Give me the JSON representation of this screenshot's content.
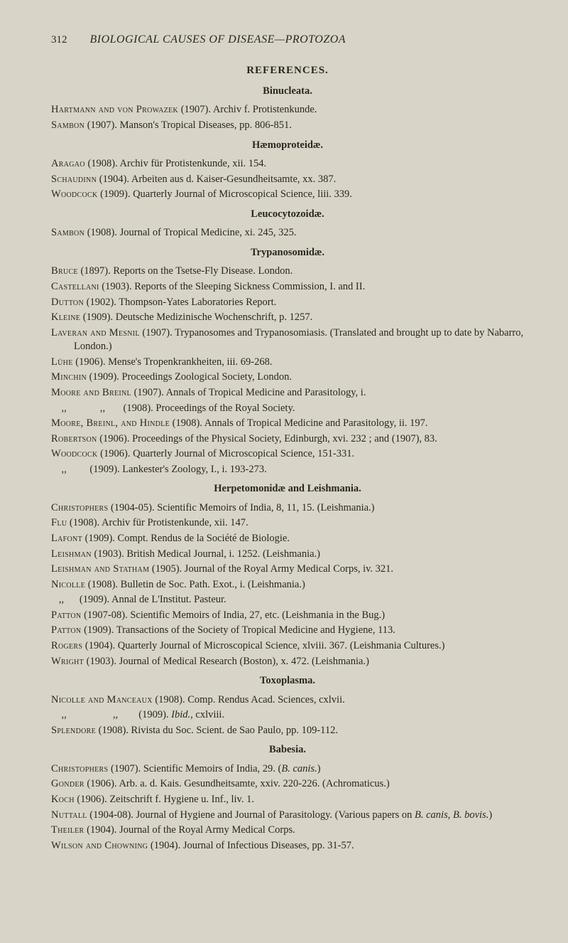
{
  "page": {
    "number": "312",
    "runningTitle": "BIOLOGICAL CAUSES OF DISEASE—PROTOZOA"
  },
  "mainHeading": "REFERENCES.",
  "sections": {
    "binucleata": {
      "heading": "Binucleata.",
      "entries": [
        {
          "sc": "Hartmann and von Prowazek",
          "text": " (1907). Archiv f. Protistenkunde."
        },
        {
          "sc": "Sambon",
          "text": " (1907). Manson's Tropical Diseases, pp. 806-851."
        }
      ]
    },
    "haemoproteidae": {
      "heading": "Hæmoproteidæ.",
      "entries": [
        {
          "sc": "Aragao",
          "text": " (1908). Archiv für Protistenkunde, xii. 154."
        },
        {
          "sc": "Schaudinn",
          "text": " (1904). Arbeiten aus d. Kaiser-Gesundheitsamte, xx. 387."
        },
        {
          "sc": "Woodcock",
          "text": " (1909). Quarterly Journal of Microscopical Science, liii. 339."
        }
      ]
    },
    "leucocytozoidae": {
      "heading": "Leucocytozoidæ.",
      "entries": [
        {
          "sc": "Sambon",
          "text": " (1908). Journal of Tropical Medicine, xi. 245, 325."
        }
      ]
    },
    "trypanosomidae": {
      "heading": "Trypanosomidæ.",
      "entries": [
        {
          "sc": "Bruce",
          "text": " (1897). Reports on the Tsetse-Fly Disease. London."
        },
        {
          "sc": "Castellani",
          "text": " (1903). Reports of the Sleeping Sickness Commission, I. and II."
        },
        {
          "sc": "Dutton",
          "text": " (1902). Thompson-Yates Laboratories Report."
        },
        {
          "sc": "Kleine",
          "text": " (1909). Deutsche Medizinische Wochenschrift, p. 1257."
        },
        {
          "sc": "Laveran and Mesnil",
          "text": " (1907). Trypanosomes and Trypanosomiasis. (Translated and brought up to date by Nabarro, London.)"
        },
        {
          "sc": "Lühe",
          "text": " (1906). Mense's Tropenkrankheiten, iii. 69-268."
        },
        {
          "sc": "Minchin",
          "text": " (1909). Proceedings Zoological Society, London."
        },
        {
          "sc": "Moore and Breinl",
          "text": " (1907). Annals of Tropical Medicine and Parasitology, i."
        },
        {
          "cont": "    ,,             ,,       (1908). Proceedings of the Royal Society."
        },
        {
          "sc": "Moore, Breinl, and Hindle",
          "text": " (1908). Annals of Tropical Medicine and Parasitology, ii. 197."
        },
        {
          "sc": "Robertson",
          "text": " (1906). Proceedings of the Physical Society, Edinburgh, xvi. 232 ; and (1907), 83."
        },
        {
          "sc": "Woodcock",
          "text": " (1906). Quarterly Journal of Microscopical Science, 151-331."
        },
        {
          "cont": "    ,,         (1909). Lankester's Zoology, I., i. 193-273."
        }
      ]
    },
    "herpetomonidae": {
      "heading": "Herpetomonidæ and Leishmania.",
      "entries": [
        {
          "sc": "Christophers",
          "text": " (1904-05). Scientific Memoirs of India, 8, 11, 15. (Leishmania.)"
        },
        {
          "sc": "Flu",
          "text": " (1908). Archiv für Protistenkunde, xii. 147."
        },
        {
          "sc": "Lafont",
          "text": " (1909). Compt. Rendus de la Société de Biologie."
        },
        {
          "sc": "Leishman",
          "text": " (1903). British Medical Journal, i. 1252. (Leishmania.)"
        },
        {
          "sc": "Leishman and Statham",
          "text": " (1905). Journal of the Royal Army Medical Corps, iv. 321."
        },
        {
          "sc": "Nicolle",
          "text": " (1908). Bulletin de Soc. Path. Exot., i. (Leishmania.)"
        },
        {
          "cont": "   ,,      (1909). Annal de L'Institut. Pasteur."
        },
        {
          "sc": "Patton",
          "text": " (1907-08). Scientific Memoirs of India, 27, etc. (Leishmania in the Bug.)"
        },
        {
          "sc": "Patton",
          "text": " (1909). Transactions of the Society of Tropical Medicine and Hygiene, 113."
        },
        {
          "sc": "Rogers",
          "text": " (1904). Quarterly Journal of Microscopical Science, xlviii. 367. (Leishmania Cultures.)"
        },
        {
          "sc": "Wright",
          "text": " (1903). Journal of Medical Research (Boston), x. 472. (Leishmania.)"
        }
      ]
    },
    "toxoplasma": {
      "heading": "Toxoplasma.",
      "entries": [
        {
          "sc": "Nicolle and Manceaux",
          "text": " (1908). Comp. Rendus Acad. Sciences, cxlvii."
        },
        {
          "cont": "    ,,                  ,,        (1909). ",
          "italic": "Ibid.",
          "text2": ", cxlviii."
        },
        {
          "sc": "Splendore",
          "text": " (1908). Rivista du Soc. Scient. de Sao Paulo, pp. 109-112."
        }
      ]
    },
    "babesia": {
      "heading": "Babesia.",
      "entries": [
        {
          "sc": "Christophers",
          "text": " (1907). Scientific Memoirs of India, 29. (",
          "italic": "B. canis.",
          "text2": ")"
        },
        {
          "sc": "Gonder",
          "text": " (1906). Arb. a. d. Kais. Gesundheitsamte, xxiv. 220-226. (Achromaticus.)"
        },
        {
          "sc": "Koch",
          "text": " (1906). Zeitschrift f. Hygiene u. Inf., liv. 1."
        },
        {
          "sc": "Nuttall",
          "text": " (1904-08). Journal of Hygiene and Journal of Parasitology. (Various papers on ",
          "italic": "B. canis, B. bovis.",
          "text2": ")"
        },
        {
          "sc": "Theiler",
          "text": " (1904). Journal of the Royal Army Medical Corps."
        },
        {
          "sc": "Wilson and Chowning",
          "text": " (1904). Journal of Infectious Diseases, pp. 31-57."
        }
      ]
    }
  }
}
